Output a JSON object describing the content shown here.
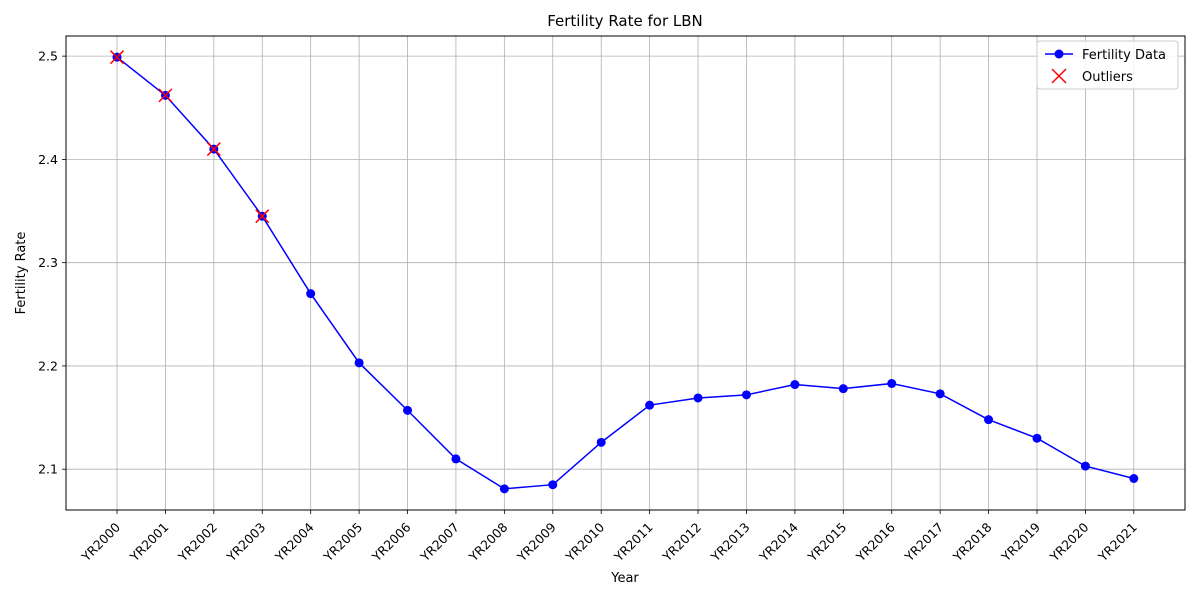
{
  "chart_data": {
    "type": "line",
    "title": "Fertility Rate for LBN",
    "xlabel": "Year",
    "ylabel": "Fertility Rate",
    "categories": [
      "YR2000",
      "YR2001",
      "YR2002",
      "YR2003",
      "YR2004",
      "YR2005",
      "YR2006",
      "YR2007",
      "YR2008",
      "YR2009",
      "YR2010",
      "YR2011",
      "YR2012",
      "YR2013",
      "YR2014",
      "YR2015",
      "YR2016",
      "YR2017",
      "YR2018",
      "YR2019",
      "YR2020",
      "YR2021"
    ],
    "series": [
      {
        "name": "Fertility Data",
        "color": "#0000ff",
        "values": [
          2.499,
          2.462,
          2.41,
          2.345,
          2.27,
          2.203,
          2.157,
          2.11,
          2.081,
          2.085,
          2.126,
          2.162,
          2.169,
          2.172,
          2.182,
          2.178,
          2.183,
          2.173,
          2.148,
          2.13,
          2.103,
          2.091
        ]
      }
    ],
    "outliers": {
      "name": "Outliers",
      "color": "#ff0000",
      "categories": [
        "YR2000",
        "YR2001",
        "YR2002",
        "YR2003"
      ],
      "values": [
        2.499,
        2.462,
        2.41,
        2.345
      ]
    },
    "yticks": [
      "2.1",
      "2.2",
      "2.3",
      "2.4",
      "2.5"
    ],
    "ylim": [
      2.0605,
      2.5195
    ],
    "grid": true,
    "legend_position": "top-right"
  }
}
